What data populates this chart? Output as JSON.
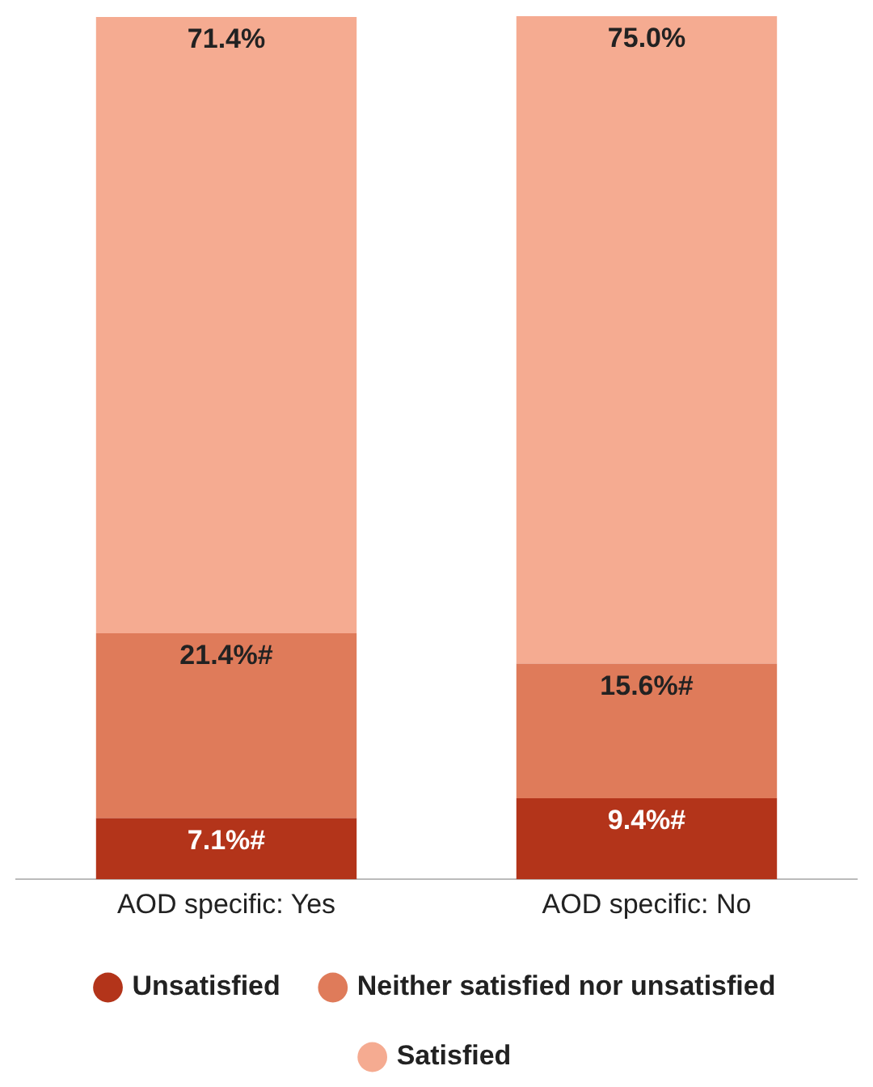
{
  "chart_data": {
    "type": "bar",
    "stacked": true,
    "categories": [
      "AOD specific: Yes",
      "AOD specific: No"
    ],
    "series": [
      {
        "name": "Unsatisfied",
        "color": "#b3341a",
        "values": [
          7.1,
          9.4
        ],
        "value_labels": [
          "7.1%#",
          "9.4%#"
        ]
      },
      {
        "name": "Neither satisfied nor unsatisfied",
        "color": "#df7b5a",
        "values": [
          21.4,
          15.6
        ],
        "value_labels": [
          "21.4%#",
          "15.6%#"
        ]
      },
      {
        "name": "Satisfied",
        "color": "#f5ab91",
        "values": [
          71.4,
          75.0
        ],
        "value_labels": [
          "71.4%",
          "75.0%"
        ]
      }
    ],
    "ylim": [
      0,
      100
    ],
    "grid": false,
    "legend": "bottom",
    "tick_labels": "x",
    "marker": "circle"
  }
}
